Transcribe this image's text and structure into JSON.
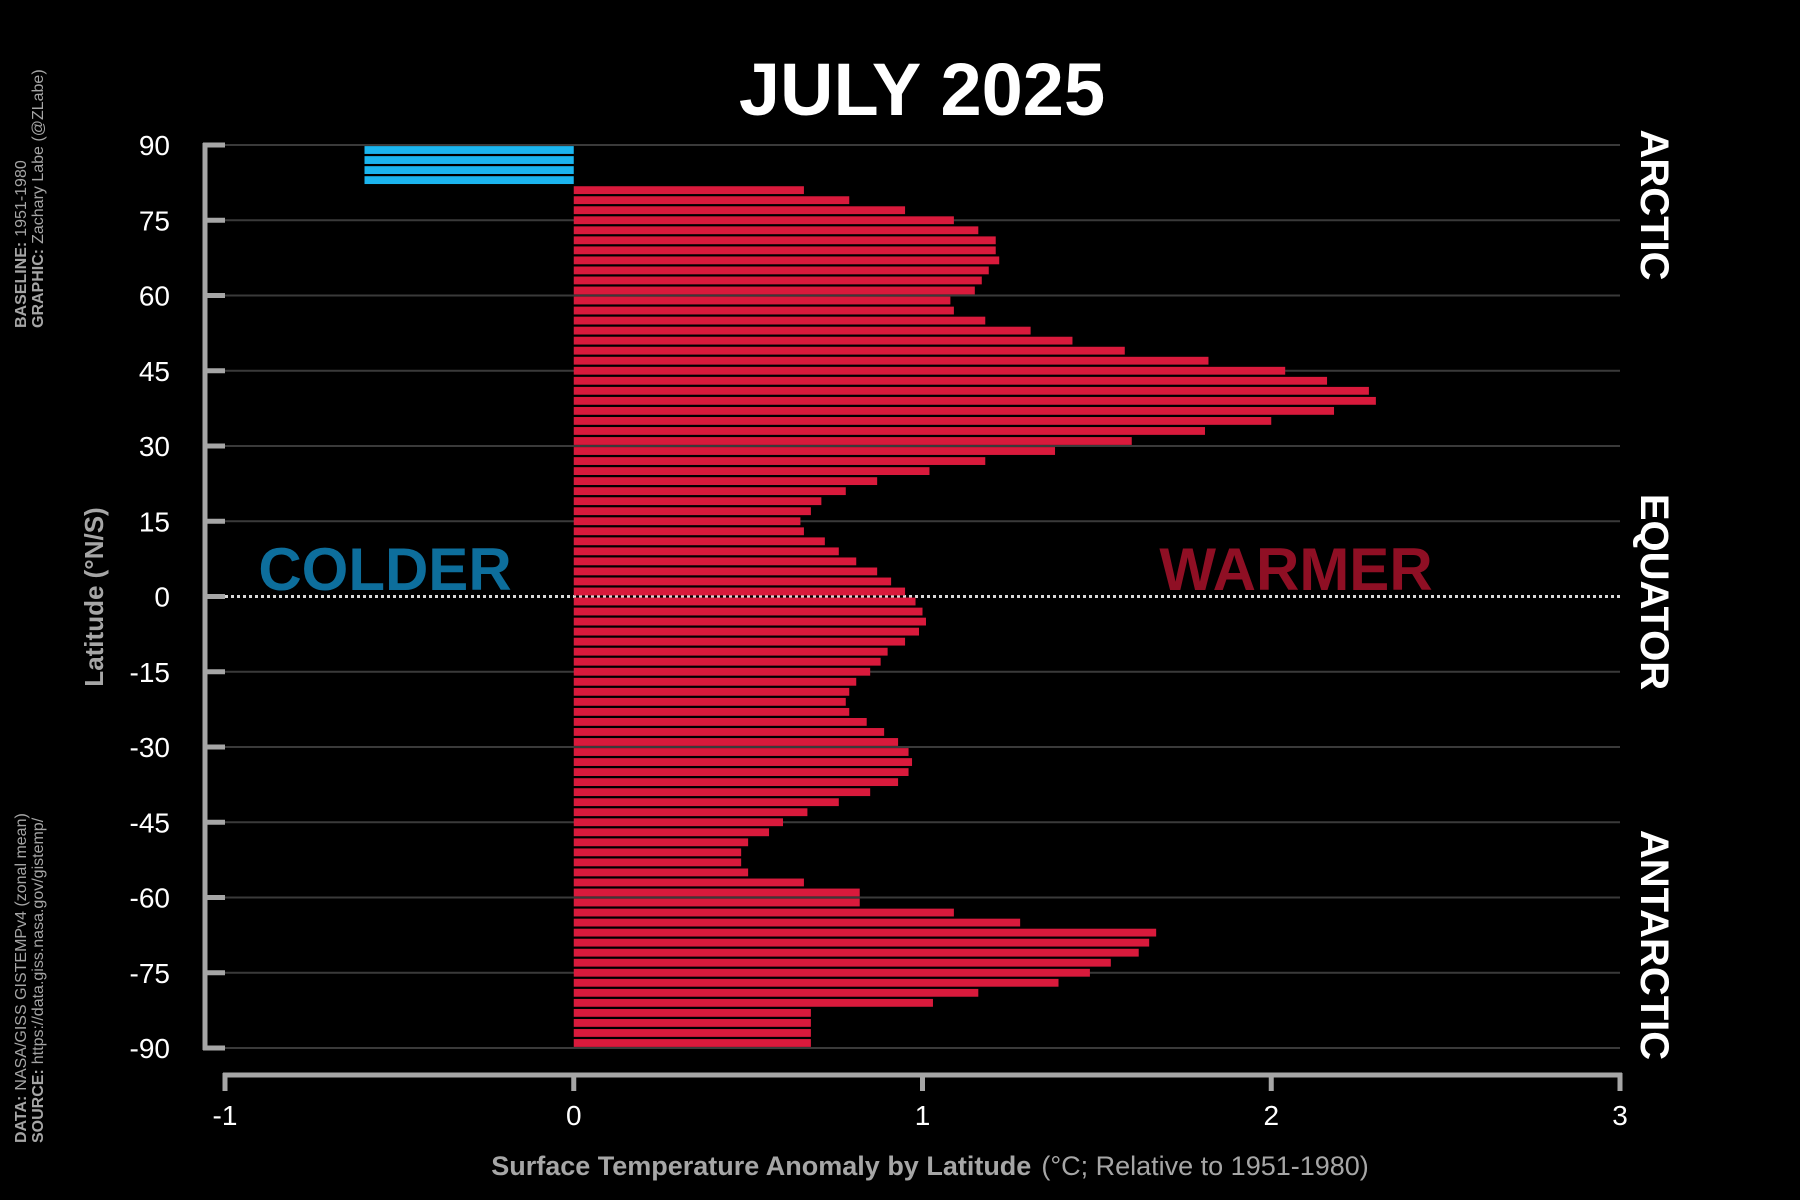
{
  "chart_data": {
    "type": "bar",
    "orientation": "horizontal",
    "title": "JULY 2025",
    "ylabel": "Latitude (°N/S)",
    "xlabel_bold": "Surface Temperature Anomaly by Latitude",
    "xlabel_rest": "(°C; Relative to 1951-1980)",
    "xlim": [
      -1,
      3
    ],
    "ylim": [
      -90,
      90
    ],
    "x_ticks": [
      "-1",
      "0",
      "1",
      "2",
      "3"
    ],
    "y_ticks": [
      "90",
      "75",
      "60",
      "45",
      "30",
      "15",
      "0",
      "-15",
      "-30",
      "-45",
      "-60",
      "-75",
      "-90"
    ],
    "grid": true,
    "region_labels": [
      "ARCTIC",
      "EQUATOR",
      "ANTARCTIC"
    ],
    "annotations": {
      "colder": "COLDER",
      "warmer": "WARMER"
    },
    "colors": {
      "positive": "#d91a3c",
      "negative": "#1bb5ef",
      "colder_text": "#0d6e9c",
      "warmer_text": "#8f0f24",
      "axis": "#a6a6a6",
      "grid": "#3a3a3a"
    },
    "latitudes": [
      89,
      87,
      85,
      83,
      81,
      79,
      77,
      75,
      73,
      71,
      69,
      67,
      65,
      63,
      61,
      59,
      57,
      55,
      53,
      51,
      49,
      47,
      45,
      43,
      41,
      39,
      37,
      35,
      33,
      31,
      29,
      27,
      25,
      23,
      21,
      19,
      17,
      15,
      13,
      11,
      9,
      7,
      5,
      3,
      1,
      -1,
      -3,
      -5,
      -7,
      -9,
      -11,
      -13,
      -15,
      -17,
      -19,
      -21,
      -23,
      -25,
      -27,
      -29,
      -31,
      -33,
      -35,
      -37,
      -39,
      -41,
      -43,
      -45,
      -47,
      -49,
      -51,
      -53,
      -55,
      -57,
      -59,
      -61,
      -63,
      -65,
      -67,
      -69,
      -71,
      -73,
      -75,
      -77,
      -79,
      -81,
      -83,
      -85,
      -87,
      -89
    ],
    "values": [
      -0.6,
      -0.6,
      -0.6,
      -0.6,
      0.66,
      0.79,
      0.95,
      1.09,
      1.16,
      1.21,
      1.21,
      1.22,
      1.19,
      1.17,
      1.15,
      1.08,
      1.09,
      1.18,
      1.31,
      1.43,
      1.58,
      1.82,
      2.04,
      2.16,
      2.28,
      2.3,
      2.18,
      2.0,
      1.81,
      1.6,
      1.38,
      1.18,
      1.02,
      0.87,
      0.78,
      0.71,
      0.68,
      0.65,
      0.66,
      0.72,
      0.76,
      0.81,
      0.87,
      0.91,
      0.95,
      0.98,
      1.0,
      1.01,
      0.99,
      0.95,
      0.9,
      0.88,
      0.85,
      0.81,
      0.79,
      0.78,
      0.79,
      0.84,
      0.89,
      0.93,
      0.96,
      0.97,
      0.96,
      0.93,
      0.85,
      0.76,
      0.67,
      0.6,
      0.56,
      0.5,
      0.48,
      0.48,
      0.5,
      0.66,
      0.82,
      0.82,
      1.09,
      1.28,
      1.67,
      1.65,
      1.62,
      1.54,
      1.48,
      1.39,
      1.16,
      1.03,
      0.68,
      0.68,
      0.68,
      0.68
    ]
  },
  "side_text": {
    "baseline_label": "BASELINE:",
    "baseline_value": "1951-1980",
    "graphic_label": "GRAPHIC:",
    "graphic_value": "Zachary Labe (@ZLabe)",
    "data_label": "DATA:",
    "data_value": "NASA/GISS GISTEMPv4 (zonal mean)",
    "source_label": "SOURCE:",
    "source_value": "https://data.giss.nasa.gov/gistemp/"
  }
}
